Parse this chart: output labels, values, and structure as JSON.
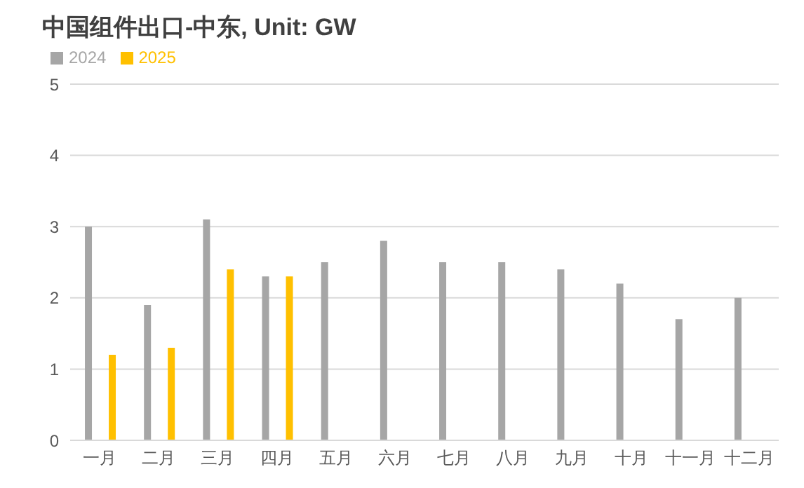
{
  "chart_data": {
    "type": "bar",
    "title": "中国组件出口-中东, Unit: GW",
    "categories": [
      "一月",
      "二月",
      "三月",
      "四月",
      "五月",
      "六月",
      "七月",
      "八月",
      "九月",
      "十月",
      "十一月",
      "十二月"
    ],
    "series": [
      {
        "name": "2024",
        "color": "#a6a6a6",
        "values": [
          3.0,
          1.9,
          3.1,
          2.3,
          2.5,
          2.8,
          2.5,
          2.5,
          2.4,
          2.2,
          1.7,
          2.0
        ]
      },
      {
        "name": "2025",
        "color": "#ffc000",
        "values": [
          1.2,
          1.3,
          2.4,
          2.3,
          null,
          null,
          null,
          null,
          null,
          null,
          null,
          null
        ]
      }
    ],
    "ylim": [
      0,
      5
    ],
    "yticks": [
      0,
      1,
      2,
      3,
      4,
      5
    ],
    "grid": "y",
    "legend": "top left"
  }
}
